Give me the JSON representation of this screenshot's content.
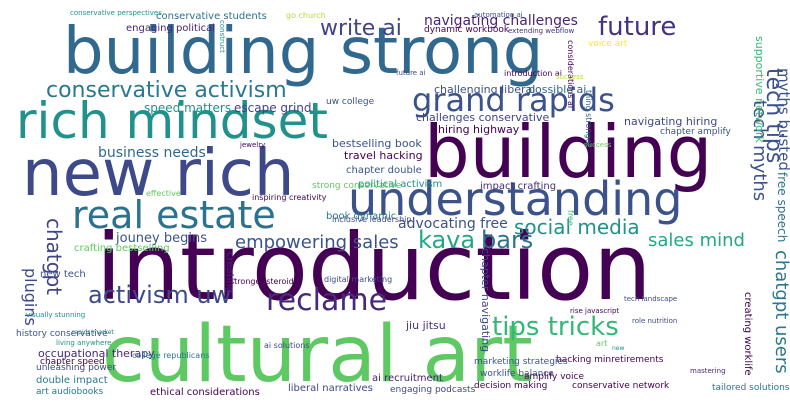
{
  "words": [
    {
      "text": "introduction",
      "color": "#440154"
    },
    {
      "text": "building strong",
      "color": "#31688e"
    },
    {
      "text": "cultural art",
      "color": "#5ec962"
    },
    {
      "text": "building",
      "color": "#440154"
    },
    {
      "text": "new rich",
      "color": "#3e4989"
    },
    {
      "text": "rich mindset",
      "color": "#21918c"
    },
    {
      "text": "understanding",
      "color": "#3b528b"
    },
    {
      "text": "real estate",
      "color": "#2c728e"
    },
    {
      "text": "grand rapids",
      "color": "#3b528b"
    },
    {
      "text": "reclame",
      "color": "#482878"
    },
    {
      "text": "conservative activism",
      "color": "#2a788e"
    },
    {
      "text": "write ai",
      "color": "#414487"
    },
    {
      "text": "future",
      "color": "#46327e"
    },
    {
      "text": "navigating challenges",
      "color": "#482475"
    },
    {
      "text": "sales mind",
      "color": "#22a884"
    },
    {
      "text": "tech tips",
      "color": "#3b528b"
    },
    {
      "text": "tips tricks",
      "color": "#35b779"
    },
    {
      "text": "activism uw",
      "color": "#3e4989"
    },
    {
      "text": "empowering sales",
      "color": "#3b528b"
    },
    {
      "text": "social media",
      "color": "#21918c"
    },
    {
      "text": "kava",
      "color": "#22a884"
    },
    {
      "text": "bars",
      "color": "#2c728e"
    },
    {
      "text": "chatgpt",
      "color": "#414487"
    },
    {
      "text": "chatgpt users",
      "color": "#2a788e"
    },
    {
      "text": "plugins",
      "color": "#3e4989"
    },
    {
      "text": "tech myths",
      "color": "#3b528b"
    },
    {
      "text": "myths busted",
      "color": "#3b528b"
    },
    {
      "text": "business needs",
      "color": "#31688e"
    },
    {
      "text": "advocating free",
      "color": "#3b528b"
    },
    {
      "text": "jouney begins",
      "color": "#3b528b"
    },
    {
      "text": "bestselling book",
      "color": "#3b528b"
    },
    {
      "text": "free speech",
      "color": "#2c728e"
    },
    {
      "text": "supportive network",
      "color": "#35b779"
    },
    {
      "text": "jiu jitsu",
      "color": "#46327e"
    },
    {
      "text": "speed matters",
      "color": "#21918c"
    },
    {
      "text": "escape grind",
      "color": "#414487"
    },
    {
      "text": "hiring highway",
      "color": "#440154"
    },
    {
      "text": "challenging liberal",
      "color": "#3b528b"
    },
    {
      "text": "possible ai",
      "color": "#31688e"
    },
    {
      "text": "navigating hiring",
      "color": "#3e4989"
    },
    {
      "text": "challenges conservative",
      "color": "#414487"
    },
    {
      "text": "travel hacking",
      "color": "#440154"
    },
    {
      "text": "book dynamic",
      "color": "#2a788e"
    },
    {
      "text": "chapter double",
      "color": "#3b528b"
    },
    {
      "text": "crafting bestselling",
      "color": "#5ec962"
    },
    {
      "text": "new tech",
      "color": "#3b528b"
    },
    {
      "text": "creating",
      "color": "#482475"
    },
    {
      "text": "occupational therapy",
      "color": "#482878"
    },
    {
      "text": "ethical considerations",
      "color": "#440154"
    },
    {
      "text": "liberal narratives",
      "color": "#3e4989"
    },
    {
      "text": "ai recruitment",
      "color": "#482475"
    },
    {
      "text": "double impact",
      "color": "#2a788e"
    },
    {
      "text": "unleashing power",
      "color": "#3e4989"
    },
    {
      "text": "conservative students",
      "color": "#2c728e"
    },
    {
      "text": "engaging political",
      "color": "#482475"
    },
    {
      "text": "dynamic workbook",
      "color": "#440154"
    },
    {
      "text": "political activism",
      "color": "#21918c"
    },
    {
      "text": "impact crafting",
      "color": "#46327e"
    },
    {
      "text": "strong conservative",
      "color": "#5ec962"
    },
    {
      "text": "creating worklife",
      "color": "#440154"
    },
    {
      "text": "history conservative",
      "color": "#3b528b"
    },
    {
      "text": "hacking minretirements",
      "color": "#440154"
    },
    {
      "text": "marketing strategies",
      "color": "#3b528b"
    },
    {
      "text": "worklife balance",
      "color": "#3b528b"
    },
    {
      "text": "decision making",
      "color": "#440154"
    },
    {
      "text": "amplify voice",
      "color": "#440154"
    },
    {
      "text": "conservative network",
      "color": "#440154"
    },
    {
      "text": "tailored solutions",
      "color": "#2a788e"
    },
    {
      "text": "engaging podcasts",
      "color": "#3e4989"
    },
    {
      "text": "art audiobooks",
      "color": "#2a788e"
    },
    {
      "text": "uw college",
      "color": "#3b528b"
    },
    {
      "text": "chapter amplify",
      "color": "#3b528b"
    },
    {
      "text": "chapter navigating",
      "color": "#3e4989"
    },
    {
      "text": "voice art",
      "color": "#fde725"
    },
    {
      "text": "chapter speed",
      "color": "#440154"
    },
    {
      "text": "college republicans",
      "color": "#2a788e"
    },
    {
      "text": "ai solutions",
      "color": "#3e4989"
    },
    {
      "text": "digital marketing",
      "color": "#3e4989"
    },
    {
      "text": "inclusive leadership",
      "color": "#3e4989"
    },
    {
      "text": "stronger steroids",
      "color": "#440154"
    },
    {
      "text": "effective",
      "color": "#5ec962"
    },
    {
      "text": "inspiring creativity",
      "color": "#440154"
    },
    {
      "text": "introduction ai",
      "color": "#440154"
    },
    {
      "text": "construct",
      "color": "#21918c"
    },
    {
      "text": "conservative perspectives",
      "color": "#21918c"
    },
    {
      "text": "considerations ai",
      "color": "#440154"
    },
    {
      "text": "go church",
      "color": "#b5de2b"
    },
    {
      "text": "automation ai",
      "color": "#3b528b"
    },
    {
      "text": "extending webflow",
      "color": "#46327e"
    },
    {
      "text": "thing stronger",
      "color": "#31688e"
    },
    {
      "text": "living anywhere",
      "color": "#21918c"
    },
    {
      "text": "visually stunning",
      "color": "#21918c"
    },
    {
      "text": "free",
      "color": "#35b779"
    },
    {
      "text": "success",
      "color": "#6ece58"
    },
    {
      "text": "mastering",
      "color": "#482878"
    },
    {
      "text": "success",
      "color": "#b5de2b"
    },
    {
      "text": "rapids market",
      "color": "#2a788e"
    },
    {
      "text": "jewelry",
      "color": "#440154"
    },
    {
      "text": "role nutrition",
      "color": "#3e4989"
    },
    {
      "text": "tech landscape",
      "color": "#3e4989"
    },
    {
      "text": "rise javascript",
      "color": "#440154"
    },
    {
      "text": "future ai",
      "color": "#3e4989"
    },
    {
      "text": "art",
      "color": "#5ec962"
    },
    {
      "text": "new",
      "color": "#21918c"
    }
  ]
}
